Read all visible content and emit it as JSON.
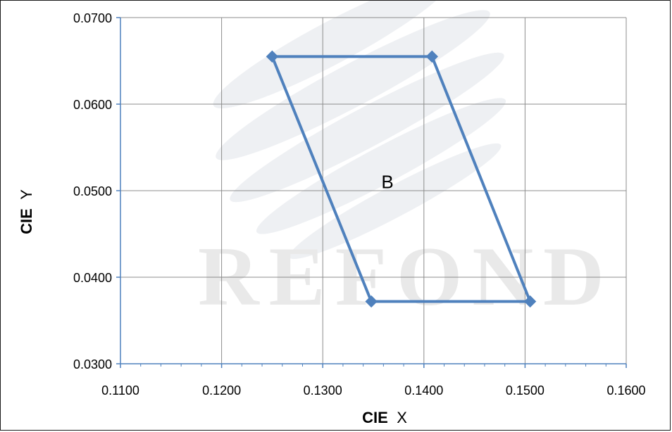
{
  "chart_data": {
    "type": "scatter",
    "title": "",
    "xlabel_parts": [
      "CIE",
      "X"
    ],
    "ylabel_parts": [
      "CIE",
      "Y"
    ],
    "xlim": [
      0.11,
      0.16
    ],
    "ylim": [
      0.03,
      0.07
    ],
    "x_ticks": [
      "0.1100",
      "0.1200",
      "0.1300",
      "0.1400",
      "0.1500",
      "0.1600"
    ],
    "y_ticks": [
      "0.0300",
      "0.0400",
      "0.0500",
      "0.0600",
      "0.0700"
    ],
    "grid": true,
    "series": [
      {
        "x": [
          0.125,
          0.1408,
          0.1505,
          0.1348,
          0.125
        ],
        "y": [
          0.0655,
          0.0655,
          0.0372,
          0.0372,
          0.0655
        ],
        "marker": "diamond",
        "color": "#4f81bd"
      }
    ],
    "annotations": [
      {
        "text": "B",
        "x": 0.1364,
        "y": 0.051
      }
    ],
    "watermark": "REFOND"
  }
}
